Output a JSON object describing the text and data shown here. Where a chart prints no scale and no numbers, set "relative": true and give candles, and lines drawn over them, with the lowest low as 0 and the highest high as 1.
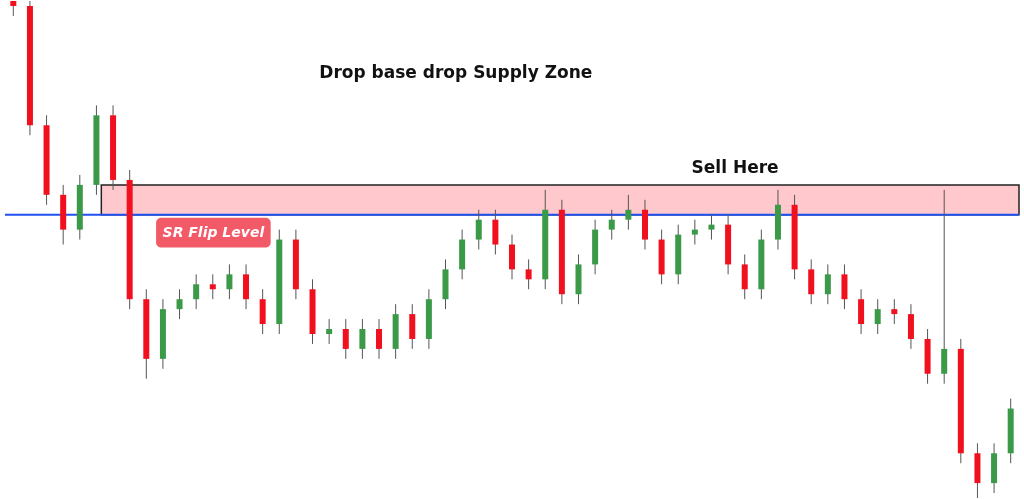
{
  "chart_data": {
    "type": "candlestick",
    "relative": true,
    "categories": [
      null,
      null,
      null,
      null,
      null,
      null,
      null,
      null,
      null,
      null,
      null,
      null,
      null,
      null,
      null,
      null,
      null,
      null,
      null,
      null,
      null,
      null,
      null,
      null,
      null,
      null,
      null,
      null,
      null,
      null,
      null,
      null,
      null,
      null,
      null,
      null,
      null,
      null,
      null,
      null,
      null,
      null,
      null,
      null,
      null,
      null,
      null,
      null,
      null,
      null,
      null,
      null,
      null,
      null,
      null,
      null,
      null,
      null,
      null,
      null,
      null
    ],
    "ohlc": [
      [
        1.0,
        1.0,
        0.97,
        0.99
      ],
      [
        0.99,
        1.0,
        0.73,
        0.75
      ],
      [
        0.75,
        0.77,
        0.59,
        0.61
      ],
      [
        0.61,
        0.63,
        0.51,
        0.54
      ],
      [
        0.54,
        0.65,
        0.52,
        0.63
      ],
      [
        0.63,
        0.79,
        0.61,
        0.77
      ],
      [
        0.77,
        0.79,
        0.62,
        0.64
      ],
      [
        0.64,
        0.66,
        0.38,
        0.4
      ],
      [
        0.4,
        0.42,
        0.24,
        0.28
      ],
      [
        0.28,
        0.4,
        0.26,
        0.38
      ],
      [
        0.38,
        0.42,
        0.36,
        0.4
      ],
      [
        0.4,
        0.45,
        0.38,
        0.43
      ],
      [
        0.43,
        0.45,
        0.4,
        0.42
      ],
      [
        0.42,
        0.47,
        0.4,
        0.45
      ],
      [
        0.45,
        0.47,
        0.38,
        0.4
      ],
      [
        0.4,
        0.42,
        0.33,
        0.35
      ],
      [
        0.35,
        0.54,
        0.33,
        0.52
      ],
      [
        0.52,
        0.54,
        0.4,
        0.42
      ],
      [
        0.42,
        0.44,
        0.31,
        0.33
      ],
      [
        0.33,
        0.36,
        0.31,
        0.34
      ],
      [
        0.34,
        0.36,
        0.28,
        0.3
      ],
      [
        0.3,
        0.36,
        0.28,
        0.34
      ],
      [
        0.34,
        0.36,
        0.28,
        0.3
      ],
      [
        0.3,
        0.39,
        0.28,
        0.37
      ],
      [
        0.37,
        0.39,
        0.3,
        0.32
      ],
      [
        0.32,
        0.42,
        0.3,
        0.4
      ],
      [
        0.4,
        0.48,
        0.38,
        0.46
      ],
      [
        0.46,
        0.54,
        0.44,
        0.52
      ],
      [
        0.52,
        0.58,
        0.5,
        0.56
      ],
      [
        0.56,
        0.58,
        0.49,
        0.51
      ],
      [
        0.51,
        0.53,
        0.44,
        0.46
      ],
      [
        0.46,
        0.48,
        0.42,
        0.44
      ],
      [
        0.44,
        0.62,
        0.42,
        0.58
      ],
      [
        0.58,
        0.6,
        0.39,
        0.41
      ],
      [
        0.41,
        0.49,
        0.39,
        0.47
      ],
      [
        0.47,
        0.56,
        0.45,
        0.54
      ],
      [
        0.54,
        0.58,
        0.52,
        0.56
      ],
      [
        0.56,
        0.61,
        0.54,
        0.58
      ],
      [
        0.58,
        0.6,
        0.5,
        0.52
      ],
      [
        0.52,
        0.54,
        0.43,
        0.45
      ],
      [
        0.45,
        0.55,
        0.43,
        0.53
      ],
      [
        0.53,
        0.56,
        0.51,
        0.54
      ],
      [
        0.54,
        0.57,
        0.52,
        0.55
      ],
      [
        0.55,
        0.57,
        0.45,
        0.47
      ],
      [
        0.47,
        0.49,
        0.4,
        0.42
      ],
      [
        0.42,
        0.54,
        0.4,
        0.52
      ],
      [
        0.52,
        0.62,
        0.5,
        0.59
      ],
      [
        0.59,
        0.61,
        0.44,
        0.46
      ],
      [
        0.46,
        0.48,
        0.39,
        0.41
      ],
      [
        0.41,
        0.47,
        0.39,
        0.45
      ],
      [
        0.45,
        0.47,
        0.38,
        0.4
      ],
      [
        0.4,
        0.42,
        0.33,
        0.35
      ],
      [
        0.35,
        0.4,
        0.33,
        0.38
      ],
      [
        0.38,
        0.4,
        0.35,
        0.37
      ],
      [
        0.37,
        0.39,
        0.3,
        0.32
      ],
      [
        0.32,
        0.34,
        0.23,
        0.25
      ],
      [
        0.25,
        0.62,
        0.23,
        0.3
      ],
      [
        0.3,
        0.32,
        0.07,
        0.09
      ],
      [
        0.09,
        0.11,
        0.0,
        0.03
      ],
      [
        0.03,
        0.11,
        0.01,
        0.09
      ],
      [
        0.09,
        0.2,
        0.07,
        0.18
      ]
    ],
    "bands": [
      {
        "axis": "y",
        "from": 0.57,
        "to": 0.63,
        "label": "Sell Here",
        "color": "#ffc8cc"
      }
    ],
    "ref_lines": [
      {
        "axis": "y",
        "value": 0.57,
        "label": "SR Flip Level",
        "color": "#2150f0"
      }
    ],
    "annotations": [
      "Drop base drop Supply Zone"
    ]
  }
}
